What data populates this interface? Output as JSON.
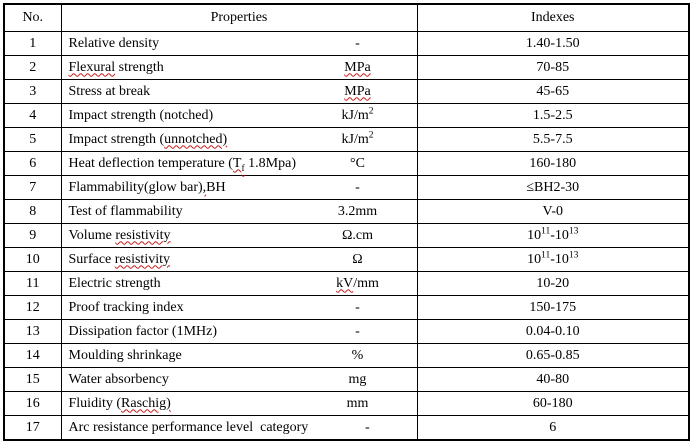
{
  "colors": {
    "background": "#ffffff",
    "border": "#000000",
    "text": "#000000",
    "squiggle": "#c61a1a"
  },
  "table": {
    "headers": {
      "no": "No.",
      "properties": "Properties",
      "indexes": "Indexes"
    },
    "rows": [
      {
        "no": "1",
        "property": [
          {
            "t": "Relative density"
          }
        ],
        "unit": [
          {
            "t": "-"
          }
        ],
        "index": [
          {
            "t": "1.40-1.50"
          }
        ]
      },
      {
        "no": "2",
        "property": [
          {
            "t": "Flexural",
            "s": "misspelled"
          },
          {
            "t": " strength"
          }
        ],
        "unit": [
          {
            "t": "MPa",
            "s": "misspelled"
          }
        ],
        "index": [
          {
            "t": "70-85"
          }
        ]
      },
      {
        "no": "3",
        "property": [
          {
            "t": "Stress at break"
          }
        ],
        "unit": [
          {
            "t": "MPa",
            "s": "misspelled"
          }
        ],
        "index": [
          {
            "t": "45-65"
          }
        ]
      },
      {
        "no": "4",
        "property": [
          {
            "t": "Impact strength (notched)"
          }
        ],
        "unit": [
          {
            "t": "kJ/m"
          },
          {
            "t": "2",
            "s": "sup"
          }
        ],
        "index": [
          {
            "t": "1.5-2.5"
          }
        ]
      },
      {
        "no": "5",
        "property": [
          {
            "t": "Impact strength ("
          },
          {
            "t": "unnotched)",
            "s": "misspelled"
          }
        ],
        "unit": [
          {
            "t": "kJ/m"
          },
          {
            "t": "2",
            "s": "sup"
          }
        ],
        "index": [
          {
            "t": "5.5-7.5"
          }
        ]
      },
      {
        "no": "6",
        "property": [
          {
            "t": "Heat deflection temperature ("
          },
          {
            "t": "T",
            "s": "misspelled"
          },
          {
            "t": "f",
            "s": "sub misspelled"
          },
          {
            "t": " 1.8Mpa)"
          }
        ],
        "unit": [
          {
            "t": "°C"
          }
        ],
        "index": [
          {
            "t": "160-180"
          }
        ]
      },
      {
        "no": "7",
        "property": [
          {
            "t": "Flammability(glow bar)"
          },
          {
            "t": ",",
            "s": "misspelled"
          },
          {
            "t": "BH"
          }
        ],
        "unit": [
          {
            "t": "-"
          }
        ],
        "index": [
          {
            "t": "≤BH2-30"
          }
        ]
      },
      {
        "no": "8",
        "property": [
          {
            "t": "Test of flammability"
          }
        ],
        "unit": [
          {
            "t": "3.2mm"
          }
        ],
        "index": [
          {
            "t": "V-0"
          }
        ]
      },
      {
        "no": "9",
        "property": [
          {
            "t": "Volume "
          },
          {
            "t": "resistivity",
            "s": "misspelled"
          }
        ],
        "unit": [
          {
            "t": "Ω.cm"
          }
        ],
        "index": [
          {
            "t": "10"
          },
          {
            "t": "11",
            "s": "sup"
          },
          {
            "t": "-10"
          },
          {
            "t": "13",
            "s": "sup"
          }
        ]
      },
      {
        "no": "10",
        "property": [
          {
            "t": "Surface "
          },
          {
            "t": "resistivity",
            "s": "misspelled"
          }
        ],
        "unit": [
          {
            "t": "Ω"
          }
        ],
        "index": [
          {
            "t": "10"
          },
          {
            "t": "11",
            "s": "sup"
          },
          {
            "t": "-10"
          },
          {
            "t": "13",
            "s": "sup"
          }
        ]
      },
      {
        "no": "11",
        "property": [
          {
            "t": "Electric strength"
          }
        ],
        "unit": [
          {
            "t": "kV",
            "s": "misspelled"
          },
          {
            "t": "/mm"
          }
        ],
        "index": [
          {
            "t": "10-20"
          }
        ]
      },
      {
        "no": "12",
        "property": [
          {
            "t": "Proof tracking index"
          }
        ],
        "unit": [
          {
            "t": "-"
          }
        ],
        "index": [
          {
            "t": "150-175"
          }
        ]
      },
      {
        "no": "13",
        "property": [
          {
            "t": "Dissipation factor (1MHz)"
          }
        ],
        "unit": [
          {
            "t": "-"
          }
        ],
        "index": [
          {
            "t": "0.04-0.10"
          }
        ]
      },
      {
        "no": "14",
        "property": [
          {
            "t": "Moulding shrinkage"
          }
        ],
        "unit": [
          {
            "t": "%"
          }
        ],
        "index": [
          {
            "t": "0.65-0.85"
          }
        ]
      },
      {
        "no": "15",
        "property": [
          {
            "t": "Water absorbency"
          }
        ],
        "unit": [
          {
            "t": "mg"
          }
        ],
        "index": [
          {
            "t": "40-80"
          }
        ]
      },
      {
        "no": "16",
        "property": [
          {
            "t": "Fluidity ("
          },
          {
            "t": "Raschig)",
            "s": "misspelled"
          }
        ],
        "unit": [
          {
            "t": "mm"
          }
        ],
        "index": [
          {
            "t": "60-180"
          }
        ]
      },
      {
        "no": "17",
        "property": [
          {
            "t": "Arc resistance performance level  category"
          }
        ],
        "unit": [
          {
            "t": "-"
          }
        ],
        "index": [
          {
            "t": "6"
          }
        ]
      }
    ]
  }
}
